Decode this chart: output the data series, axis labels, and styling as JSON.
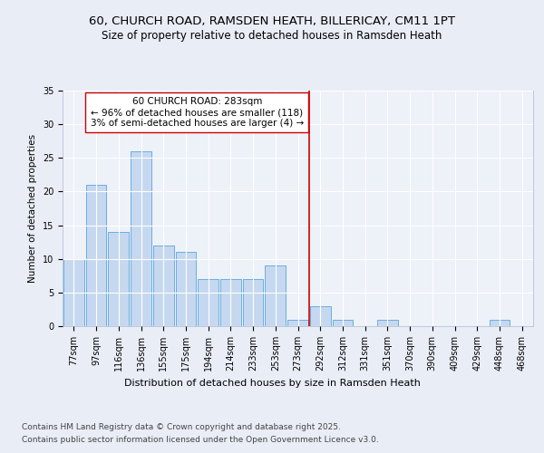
{
  "title_line1": "60, CHURCH ROAD, RAMSDEN HEATH, BILLERICAY, CM11 1PT",
  "title_line2": "Size of property relative to detached houses in Ramsden Heath",
  "xlabel": "Distribution of detached houses by size in Ramsden Heath",
  "ylabel": "Number of detached properties",
  "bar_labels": [
    "77sqm",
    "97sqm",
    "116sqm",
    "136sqm",
    "155sqm",
    "175sqm",
    "194sqm",
    "214sqm",
    "233sqm",
    "253sqm",
    "273sqm",
    "292sqm",
    "312sqm",
    "331sqm",
    "351sqm",
    "370sqm",
    "390sqm",
    "409sqm",
    "429sqm",
    "448sqm",
    "468sqm"
  ],
  "bar_values": [
    10,
    21,
    14,
    26,
    12,
    11,
    7,
    7,
    7,
    9,
    1,
    3,
    1,
    0,
    1,
    0,
    0,
    0,
    0,
    1,
    0
  ],
  "bar_color": "#c5d8f0",
  "bar_edgecolor": "#6aaee0",
  "bar_linewidth": 0.7,
  "vline_index": 10.5,
  "vline_color": "#cc0000",
  "vline_linewidth": 1.2,
  "annotation_text": "60 CHURCH ROAD: 283sqm\n← 96% of detached houses are smaller (118)\n3% of semi-detached houses are larger (4) →",
  "annotation_box_facecolor": "#ffffff",
  "annotation_box_edgecolor": "#cc0000",
  "annotation_fontsize": 7.5,
  "ylim": [
    0,
    35
  ],
  "yticks": [
    0,
    5,
    10,
    15,
    20,
    25,
    30,
    35
  ],
  "bg_color": "#e8edf6",
  "plot_bg_color": "#edf1f8",
  "grid_color": "#ffffff",
  "footer_line1": "Contains HM Land Registry data © Crown copyright and database right 2025.",
  "footer_line2": "Contains public sector information licensed under the Open Government Licence v3.0.",
  "title_fontsize": 9.5,
  "subtitle_fontsize": 8.5,
  "xlabel_fontsize": 8,
  "ylabel_fontsize": 7.5,
  "tick_fontsize": 7,
  "footer_fontsize": 6.5
}
